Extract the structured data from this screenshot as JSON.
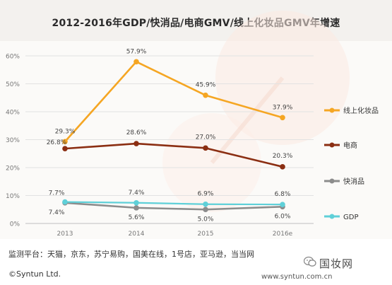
{
  "chart_data": {
    "type": "line",
    "title": "2012-2016年GDP/快消品/电商GMV/线上化妆品GMV年增速",
    "categories": [
      "2013",
      "2014",
      "2015",
      "2016e"
    ],
    "y_ticks": [
      "0%",
      "10%",
      "20%",
      "30%",
      "40%",
      "50%",
      "60%"
    ],
    "ylim": [
      0,
      60
    ],
    "grid": true,
    "legend_position": "right",
    "series": [
      {
        "name": "线上化妆品",
        "color": "#f5a623",
        "values": [
          29.3,
          57.9,
          45.9,
          37.9
        ],
        "labels": [
          "29.3%",
          "57.9%",
          "45.9%",
          "37.9%"
        ]
      },
      {
        "name": "电商",
        "color": "#8b2e12",
        "values": [
          26.8,
          28.6,
          27.0,
          20.3
        ],
        "labels": [
          "26.8%",
          "28.6%",
          "27.0%",
          "20.3%"
        ]
      },
      {
        "name": "快消品",
        "color": "#8c8c8c",
        "values": [
          7.4,
          5.6,
          5.0,
          6.0
        ],
        "labels": [
          "7.4%",
          "5.6%",
          "5.0%",
          "6.0%"
        ]
      },
      {
        "name": "GDP",
        "color": "#5fd0d8",
        "values": [
          7.7,
          7.4,
          6.9,
          6.8
        ],
        "labels": [
          "7.7%",
          "7.4%",
          "6.9%",
          "6.8%"
        ]
      }
    ]
  },
  "footer": {
    "source": "监测平台：天猫，京东，苏宁易购，国美在线，1号店，亚马逊，当当网",
    "copyright": "©Syntun Ltd.",
    "website": "www.syntun.com.cn",
    "brand": "国妆网"
  }
}
